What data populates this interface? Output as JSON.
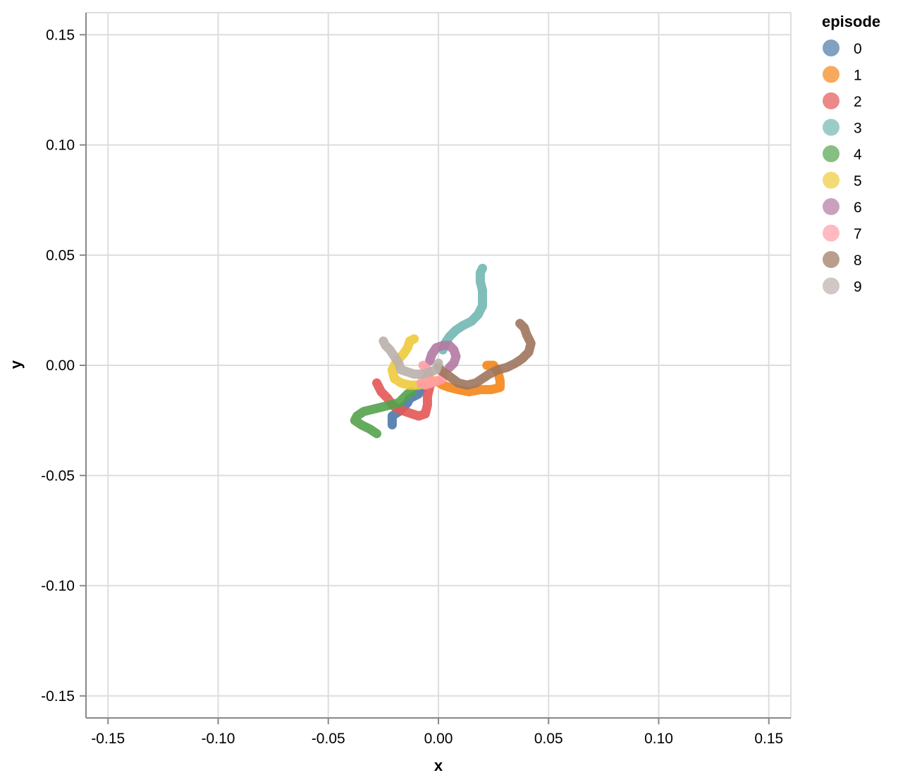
{
  "chart_data": {
    "type": "line",
    "xlabel": "x",
    "ylabel": "y",
    "xlim": [
      -0.16,
      0.16
    ],
    "ylim": [
      -0.16,
      0.16
    ],
    "x_ticks": [
      "-0.15",
      "-0.10",
      "-0.05",
      "0.00",
      "0.05",
      "0.10",
      "0.15"
    ],
    "y_ticks": [
      "0.15",
      "0.10",
      "0.05",
      "0.00",
      "-0.05",
      "-0.10",
      "-0.15"
    ],
    "grid": true,
    "legend": {
      "title": "episode",
      "position": "right"
    },
    "series": [
      {
        "name": "0",
        "color": "#4c78a8",
        "points": [
          [
            -0.021,
            -0.027
          ],
          [
            -0.021,
            -0.023
          ],
          [
            -0.018,
            -0.021
          ],
          [
            -0.016,
            -0.019
          ],
          [
            -0.014,
            -0.017
          ],
          [
            -0.013,
            -0.015
          ],
          [
            -0.011,
            -0.014
          ],
          [
            -0.009,
            -0.013
          ],
          [
            -0.008,
            -0.011
          ],
          [
            -0.006,
            -0.009
          ]
        ]
      },
      {
        "name": "1",
        "color": "#f58518",
        "points": [
          [
            0.022,
            0.0
          ],
          [
            0.025,
            0.0
          ],
          [
            0.027,
            -0.003
          ],
          [
            0.028,
            -0.007
          ],
          [
            0.028,
            -0.01
          ],
          [
            0.024,
            -0.011
          ],
          [
            0.019,
            -0.011
          ],
          [
            0.014,
            -0.012
          ],
          [
            0.009,
            -0.011
          ],
          [
            0.005,
            -0.01
          ],
          [
            0.002,
            -0.009
          ],
          [
            -0.001,
            -0.007
          ]
        ]
      },
      {
        "name": "2",
        "color": "#e45756",
        "points": [
          [
            -0.028,
            -0.008
          ],
          [
            -0.026,
            -0.012
          ],
          [
            -0.023,
            -0.015
          ],
          [
            -0.021,
            -0.018
          ],
          [
            -0.018,
            -0.02
          ],
          [
            -0.015,
            -0.021
          ],
          [
            -0.012,
            -0.022
          ],
          [
            -0.009,
            -0.023
          ],
          [
            -0.006,
            -0.022
          ],
          [
            -0.005,
            -0.018
          ],
          [
            -0.005,
            -0.014
          ],
          [
            -0.004,
            -0.01
          ],
          [
            -0.003,
            -0.007
          ]
        ]
      },
      {
        "name": "3",
        "color": "#72b7b2",
        "points": [
          [
            0.02,
            0.044
          ],
          [
            0.019,
            0.042
          ],
          [
            0.019,
            0.038
          ],
          [
            0.02,
            0.034
          ],
          [
            0.02,
            0.03
          ],
          [
            0.02,
            0.027
          ],
          [
            0.018,
            0.023
          ],
          [
            0.015,
            0.02
          ],
          [
            0.011,
            0.018
          ],
          [
            0.008,
            0.016
          ],
          [
            0.005,
            0.013
          ],
          [
            0.003,
            0.01
          ],
          [
            0.002,
            0.007
          ]
        ]
      },
      {
        "name": "4",
        "color": "#54a24b",
        "points": [
          [
            -0.028,
            -0.031
          ],
          [
            -0.031,
            -0.029
          ],
          [
            -0.035,
            -0.027
          ],
          [
            -0.038,
            -0.025
          ],
          [
            -0.037,
            -0.023
          ],
          [
            -0.034,
            -0.021
          ],
          [
            -0.03,
            -0.02
          ],
          [
            -0.026,
            -0.019
          ],
          [
            -0.022,
            -0.018
          ],
          [
            -0.018,
            -0.017
          ],
          [
            -0.016,
            -0.015
          ],
          [
            -0.014,
            -0.013
          ],
          [
            -0.012,
            -0.012
          ]
        ]
      },
      {
        "name": "5",
        "color": "#eeca3b",
        "points": [
          [
            -0.011,
            0.012
          ],
          [
            -0.013,
            0.011
          ],
          [
            -0.014,
            0.008
          ],
          [
            -0.016,
            0.005
          ],
          [
            -0.019,
            0.002
          ],
          [
            -0.021,
            -0.002
          ],
          [
            -0.02,
            -0.006
          ],
          [
            -0.017,
            -0.008
          ],
          [
            -0.013,
            -0.009
          ],
          [
            -0.009,
            -0.009
          ],
          [
            -0.005,
            -0.008
          ],
          [
            -0.002,
            -0.007
          ]
        ]
      },
      {
        "name": "6",
        "color": "#b279a2",
        "points": [
          [
            -0.004,
            0.002
          ],
          [
            -0.003,
            0.005
          ],
          [
            -0.001,
            0.008
          ],
          [
            0.002,
            0.009
          ],
          [
            0.005,
            0.009
          ],
          [
            0.007,
            0.007
          ],
          [
            0.008,
            0.004
          ],
          [
            0.007,
            0.001
          ],
          [
            0.005,
            -0.001
          ]
        ]
      },
      {
        "name": "7",
        "color": "#ff9da6",
        "points": [
          [
            -0.007,
            0.0
          ],
          [
            -0.005,
            -0.002
          ],
          [
            -0.004,
            -0.004
          ],
          [
            -0.006,
            -0.006
          ],
          [
            -0.008,
            -0.008
          ],
          [
            -0.006,
            -0.009
          ],
          [
            -0.003,
            -0.008
          ],
          [
            0.0,
            -0.007
          ],
          [
            0.002,
            -0.006
          ],
          [
            0.002,
            -0.004
          ]
        ]
      },
      {
        "name": "8",
        "color": "#9d755d",
        "points": [
          [
            0.037,
            0.019
          ],
          [
            0.039,
            0.017
          ],
          [
            0.04,
            0.014
          ],
          [
            0.042,
            0.01
          ],
          [
            0.041,
            0.006
          ],
          [
            0.038,
            0.003
          ],
          [
            0.035,
            0.001
          ],
          [
            0.031,
            -0.001
          ],
          [
            0.027,
            -0.002
          ],
          [
            0.023,
            -0.004
          ],
          [
            0.02,
            -0.006
          ],
          [
            0.017,
            -0.008
          ],
          [
            0.013,
            -0.009
          ],
          [
            0.009,
            -0.008
          ],
          [
            0.005,
            -0.005
          ],
          [
            0.002,
            -0.003
          ],
          [
            0.0,
            -0.001
          ]
        ]
      },
      {
        "name": "9",
        "color": "#bab0ac",
        "points": [
          [
            -0.025,
            0.011
          ],
          [
            -0.024,
            0.009
          ],
          [
            -0.022,
            0.007
          ],
          [
            -0.02,
            0.004
          ],
          [
            -0.018,
            0.001
          ],
          [
            -0.017,
            -0.002
          ],
          [
            -0.014,
            -0.003
          ],
          [
            -0.011,
            -0.004
          ],
          [
            -0.007,
            -0.004
          ],
          [
            -0.004,
            -0.003
          ],
          [
            -0.001,
            -0.002
          ],
          [
            0.0,
            0.001
          ]
        ]
      }
    ]
  }
}
